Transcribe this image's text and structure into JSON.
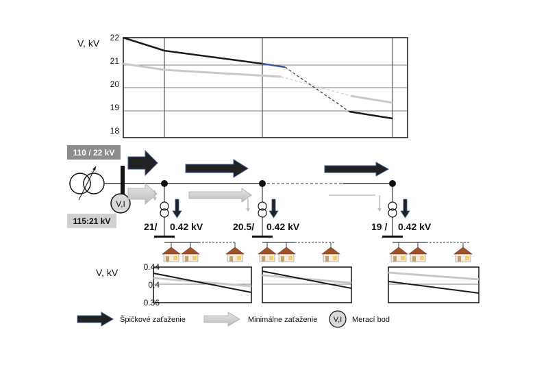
{
  "upper_chart": {
    "ylabel": "V, kV",
    "ticks": [
      "22",
      "21",
      "20",
      "19",
      "18"
    ],
    "tick_values": [
      22,
      21,
      20,
      19,
      18
    ]
  },
  "substation": {
    "transformer_rating": "110 / 22  kV",
    "tap_ratio": "115:21 kV",
    "meter_label": "V,I"
  },
  "stations": [
    {
      "primary": "21/",
      "secondary": "0.42 kV"
    },
    {
      "primary": "20.5/",
      "secondary": "0.42 kV"
    },
    {
      "primary": "19 /",
      "secondary": "0.42 kV"
    }
  ],
  "lower_chart": {
    "ylabel": "V, kV",
    "ticks": [
      "0.44",
      "0.4",
      "0.36"
    ],
    "tick_values": [
      0.44,
      0.4,
      0.36
    ]
  },
  "legend": {
    "peak": "Špičkové zaťaženie",
    "min": "Minimálne zaťaženie",
    "meter_symbol": "V,I",
    "meter": "Merací bod"
  },
  "colors": {
    "peak_line": "#1a1a1a",
    "min_line": "#c8c8c8",
    "peak_arrow": "#222222",
    "peak_arrow_edge": "#3a5a9a",
    "min_arrow": "#d8d8d8",
    "label_box": "#8c8c8c",
    "house_roof": "#a0522d"
  }
}
